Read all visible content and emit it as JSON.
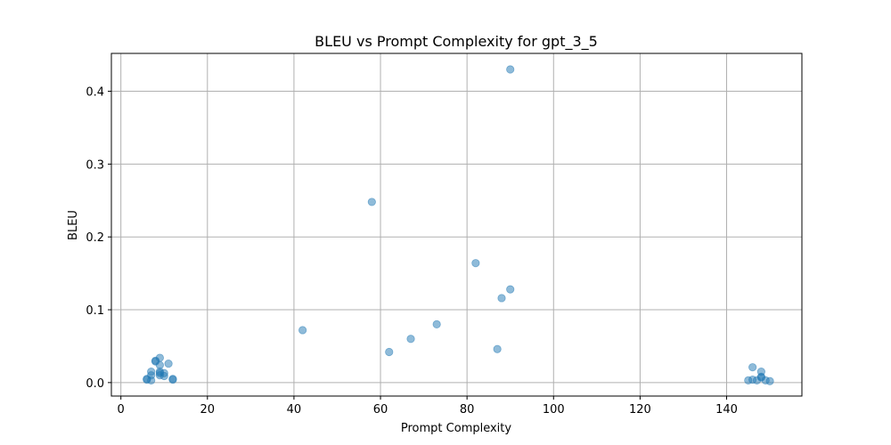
{
  "chart_data": {
    "type": "scatter",
    "title": "BLEU vs Prompt Complexity for gpt_3_5",
    "xlabel": "Prompt Complexity",
    "ylabel": "BLEU",
    "xlim": [
      -2.2,
      157.4
    ],
    "ylim": [
      -0.0185,
      0.452
    ],
    "xticks": [
      0,
      20,
      40,
      60,
      80,
      100,
      120,
      140
    ],
    "yticks": [
      0.0,
      0.1,
      0.2,
      0.3,
      0.4
    ],
    "xtick_labels": [
      "0",
      "20",
      "40",
      "60",
      "80",
      "100",
      "120",
      "140"
    ],
    "ytick_labels": [
      "0.0",
      "0.1",
      "0.2",
      "0.3",
      "0.4"
    ],
    "grid": true,
    "marker_color": "#1f77b4",
    "marker_alpha": 0.5,
    "points": [
      {
        "x": 6,
        "y": 0.004
      },
      {
        "x": 6,
        "y": 0.005
      },
      {
        "x": 7,
        "y": 0.003
      },
      {
        "x": 7,
        "y": 0.01
      },
      {
        "x": 7,
        "y": 0.015
      },
      {
        "x": 8,
        "y": 0.029
      },
      {
        "x": 8,
        "y": 0.03
      },
      {
        "x": 9,
        "y": 0.01
      },
      {
        "x": 9,
        "y": 0.013
      },
      {
        "x": 9,
        "y": 0.015
      },
      {
        "x": 9,
        "y": 0.024
      },
      {
        "x": 9,
        "y": 0.034
      },
      {
        "x": 10,
        "y": 0.009
      },
      {
        "x": 10,
        "y": 0.013
      },
      {
        "x": 11,
        "y": 0.026
      },
      {
        "x": 12,
        "y": 0.004
      },
      {
        "x": 12,
        "y": 0.005
      },
      {
        "x": 42,
        "y": 0.072
      },
      {
        "x": 58,
        "y": 0.248
      },
      {
        "x": 62,
        "y": 0.042
      },
      {
        "x": 67,
        "y": 0.06
      },
      {
        "x": 73,
        "y": 0.08
      },
      {
        "x": 82,
        "y": 0.164
      },
      {
        "x": 87,
        "y": 0.046
      },
      {
        "x": 88,
        "y": 0.116
      },
      {
        "x": 90,
        "y": 0.128
      },
      {
        "x": 90,
        "y": 0.43
      },
      {
        "x": 145,
        "y": 0.003
      },
      {
        "x": 146,
        "y": 0.004
      },
      {
        "x": 146,
        "y": 0.021
      },
      {
        "x": 147,
        "y": 0.003
      },
      {
        "x": 148,
        "y": 0.008
      },
      {
        "x": 148,
        "y": 0.015
      },
      {
        "x": 148,
        "y": 0.007
      },
      {
        "x": 149,
        "y": 0.003
      },
      {
        "x": 150,
        "y": 0.002
      }
    ]
  }
}
